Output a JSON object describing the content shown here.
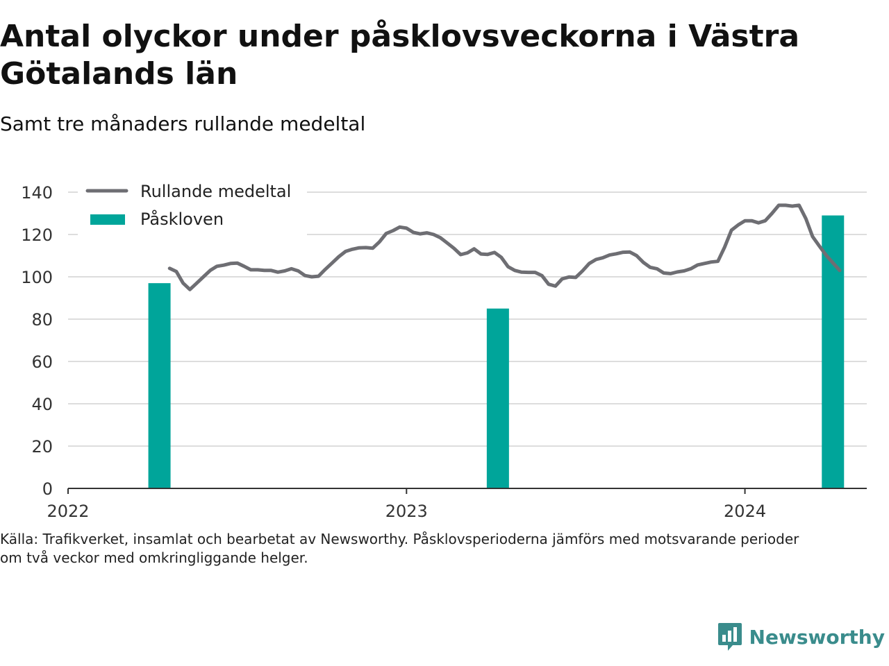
{
  "title": "Antal olyckor under påsklovsveckorna i Västra Götalands län",
  "subtitle": "Samt tre månaders rullande medeltal",
  "source": {
    "line1": "Källa: Trafikverket, insamlat och bearbetat av Newsworthy. Påsklovsperioderna jämförs med motsvarande perioder",
    "line2": "om två veckor med omkringliggande helger."
  },
  "brand": {
    "name": "Newsworthy",
    "icon": "newsworthy-logo-icon",
    "color": "#3a8c8c"
  },
  "chart_data": {
    "type": "bar",
    "xlim": [
      2022.0,
      2024.36
    ],
    "ylim": [
      0,
      140
    ],
    "y_ticks": [
      0,
      20,
      40,
      60,
      80,
      100,
      120,
      140
    ],
    "x_ticks": [
      2022,
      2023,
      2024
    ],
    "x_tick_labels": [
      "2022",
      "2023",
      "2024"
    ],
    "grid": true,
    "legend_position": "top-left",
    "colors": {
      "bar": "#00a59a",
      "line": "#6e6e73",
      "grid": "#dddddd",
      "axis": "#333333"
    },
    "legend": [
      {
        "label": "Rullande medeltal",
        "kind": "line"
      },
      {
        "label": "Påskloven",
        "kind": "bar"
      }
    ],
    "series": [
      {
        "name": "Påskloven",
        "type": "bar",
        "bars": [
          {
            "x": 2022.27,
            "value": 97
          },
          {
            "x": 2023.27,
            "value": 85
          },
          {
            "x": 2024.26,
            "value": 129
          }
        ]
      },
      {
        "name": "Rullande medeltal",
        "type": "line",
        "points": [
          [
            2022.3,
            104
          ],
          [
            2022.32,
            102.5
          ],
          [
            2022.34,
            97
          ],
          [
            2022.36,
            94
          ],
          [
            2022.38,
            97
          ],
          [
            2022.4,
            100
          ],
          [
            2022.42,
            103
          ],
          [
            2022.44,
            105
          ],
          [
            2022.46,
            105.5
          ],
          [
            2022.48,
            106.3
          ],
          [
            2022.5,
            106.5
          ],
          [
            2022.52,
            105
          ],
          [
            2022.54,
            103.3
          ],
          [
            2022.56,
            103.3
          ],
          [
            2022.58,
            103
          ],
          [
            2022.6,
            103
          ],
          [
            2022.62,
            102.2
          ],
          [
            2022.64,
            102.8
          ],
          [
            2022.66,
            103.8
          ],
          [
            2022.68,
            102.8
          ],
          [
            2022.7,
            100.6
          ],
          [
            2022.72,
            100
          ],
          [
            2022.74,
            100.3
          ],
          [
            2022.76,
            103.5
          ],
          [
            2022.78,
            106.5
          ],
          [
            2022.8,
            109.5
          ],
          [
            2022.82,
            112
          ],
          [
            2022.84,
            113
          ],
          [
            2022.86,
            113.7
          ],
          [
            2022.88,
            113.8
          ],
          [
            2022.9,
            113.5
          ],
          [
            2022.92,
            116.5
          ],
          [
            2022.94,
            120.5
          ],
          [
            2022.96,
            121.8
          ],
          [
            2022.98,
            123.5
          ],
          [
            2023.0,
            123
          ],
          [
            2023.02,
            121
          ],
          [
            2023.04,
            120.3
          ],
          [
            2023.06,
            120.8
          ],
          [
            2023.08,
            120
          ],
          [
            2023.1,
            118.5
          ],
          [
            2023.12,
            116
          ],
          [
            2023.14,
            113.5
          ],
          [
            2023.16,
            110.5
          ],
          [
            2023.18,
            111.3
          ],
          [
            2023.2,
            113.2
          ],
          [
            2023.22,
            110.8
          ],
          [
            2023.24,
            110.6
          ],
          [
            2023.26,
            111.5
          ],
          [
            2023.28,
            109.2
          ],
          [
            2023.3,
            104.8
          ],
          [
            2023.32,
            103
          ],
          [
            2023.34,
            102.2
          ],
          [
            2023.36,
            102.1
          ],
          [
            2023.38,
            102.1
          ],
          [
            2023.4,
            100.6
          ],
          [
            2023.42,
            96.5
          ],
          [
            2023.44,
            95.6
          ],
          [
            2023.46,
            99
          ],
          [
            2023.48,
            99.9
          ],
          [
            2023.5,
            99.7
          ],
          [
            2023.52,
            102.8
          ],
          [
            2023.54,
            106.3
          ],
          [
            2023.56,
            108.2
          ],
          [
            2023.58,
            109
          ],
          [
            2023.6,
            110.3
          ],
          [
            2023.62,
            110.9
          ],
          [
            2023.64,
            111.6
          ],
          [
            2023.66,
            111.7
          ],
          [
            2023.68,
            110
          ],
          [
            2023.7,
            106.8
          ],
          [
            2023.72,
            104.5
          ],
          [
            2023.74,
            103.8
          ],
          [
            2023.76,
            101.8
          ],
          [
            2023.78,
            101.5
          ],
          [
            2023.8,
            102.3
          ],
          [
            2023.82,
            102.8
          ],
          [
            2023.84,
            103.8
          ],
          [
            2023.86,
            105.6
          ],
          [
            2023.88,
            106.3
          ],
          [
            2023.9,
            107
          ],
          [
            2023.92,
            107.3
          ],
          [
            2023.94,
            114
          ],
          [
            2023.96,
            122
          ],
          [
            2023.98,
            124.5
          ],
          [
            2024.0,
            126.5
          ],
          [
            2024.02,
            126.5
          ],
          [
            2024.04,
            125.5
          ],
          [
            2024.06,
            126.5
          ],
          [
            2024.08,
            130
          ],
          [
            2024.1,
            133.8
          ],
          [
            2024.12,
            133.8
          ],
          [
            2024.14,
            133.4
          ],
          [
            2024.16,
            133.8
          ],
          [
            2024.18,
            127.5
          ],
          [
            2024.2,
            119
          ],
          [
            2024.22,
            114.5
          ],
          [
            2024.24,
            110.2
          ],
          [
            2024.26,
            106.6
          ],
          [
            2024.28,
            103
          ]
        ]
      }
    ]
  }
}
